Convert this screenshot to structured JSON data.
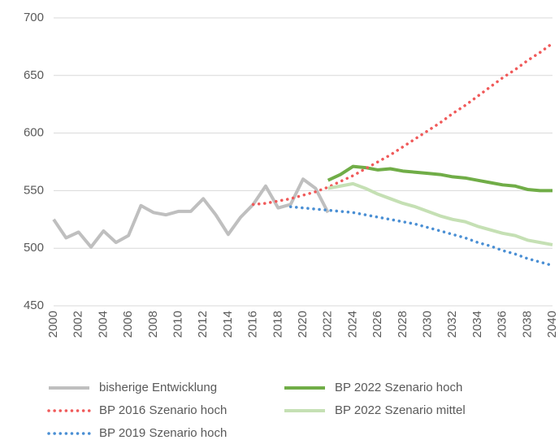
{
  "chart_data": {
    "type": "line",
    "x": [
      2000,
      2001,
      2002,
      2003,
      2004,
      2005,
      2006,
      2007,
      2008,
      2009,
      2010,
      2011,
      2012,
      2013,
      2014,
      2015,
      2016,
      2017,
      2018,
      2019,
      2020,
      2021,
      2022,
      2023,
      2024,
      2025,
      2026,
      2027,
      2028,
      2029,
      2030,
      2031,
      2032,
      2033,
      2034,
      2035,
      2036,
      2037,
      2038,
      2039,
      2040
    ],
    "xlim": [
      2000,
      2040
    ],
    "xticks": [
      2000,
      2002,
      2004,
      2006,
      2008,
      2010,
      2012,
      2014,
      2016,
      2018,
      2020,
      2022,
      2024,
      2026,
      2028,
      2030,
      2032,
      2034,
      2036,
      2038,
      2040
    ],
    "ylim": [
      450,
      700
    ],
    "yticks": [
      450,
      500,
      550,
      600,
      650,
      700
    ],
    "grid": true,
    "legend": "bottom",
    "series": [
      {
        "name": "bisherige Entwicklung",
        "color": "#bfbfbf",
        "style": "solid",
        "values": [
          525,
          509,
          514,
          501,
          515,
          505,
          511,
          537,
          531,
          529,
          532,
          532,
          543,
          529,
          512,
          527,
          538,
          554,
          535,
          538,
          560,
          552,
          531,
          null,
          null,
          null,
          null,
          null,
          null,
          null,
          null,
          null,
          null,
          null,
          null,
          null,
          null,
          null,
          null,
          null,
          null
        ]
      },
      {
        "name": "BP 2022 Szenario hoch",
        "color": "#70ad47",
        "style": "solid",
        "values": [
          null,
          null,
          null,
          null,
          null,
          null,
          null,
          null,
          null,
          null,
          null,
          null,
          null,
          null,
          null,
          null,
          null,
          null,
          null,
          null,
          null,
          null,
          559,
          564,
          571,
          570,
          568,
          569,
          567,
          566,
          565,
          564,
          562,
          561,
          559,
          557,
          555,
          554,
          551,
          550,
          550
        ]
      },
      {
        "name": "BP 2016 Szenario hoch",
        "color": "#f05a5a",
        "style": "dotted",
        "values": [
          null,
          null,
          null,
          null,
          null,
          null,
          null,
          null,
          null,
          null,
          null,
          null,
          null,
          null,
          null,
          null,
          538,
          539,
          541,
          543,
          546,
          549,
          553,
          558,
          563,
          569,
          575,
          581,
          588,
          595,
          602,
          609,
          617,
          624,
          632,
          640,
          648,
          655,
          663,
          670,
          678
        ]
      },
      {
        "name": "BP 2022 Szenario mittel",
        "color": "#c5e0b4",
        "style": "solid",
        "values": [
          null,
          null,
          null,
          null,
          null,
          null,
          null,
          null,
          null,
          null,
          null,
          null,
          null,
          null,
          null,
          null,
          null,
          null,
          null,
          null,
          null,
          null,
          552,
          554,
          556,
          552,
          547,
          543,
          539,
          536,
          532,
          528,
          525,
          523,
          519,
          516,
          513,
          511,
          507,
          505,
          503
        ]
      },
      {
        "name": "BP 2019 Szenario hoch",
        "color": "#4a8fd4",
        "style": "dotted",
        "values": [
          null,
          null,
          null,
          null,
          null,
          null,
          null,
          null,
          null,
          null,
          null,
          null,
          null,
          null,
          null,
          null,
          null,
          null,
          null,
          536,
          535,
          534,
          533,
          532,
          531,
          529,
          527,
          525,
          523,
          521,
          518,
          515,
          512,
          509,
          505,
          502,
          498,
          495,
          491,
          488,
          485
        ]
      }
    ]
  }
}
